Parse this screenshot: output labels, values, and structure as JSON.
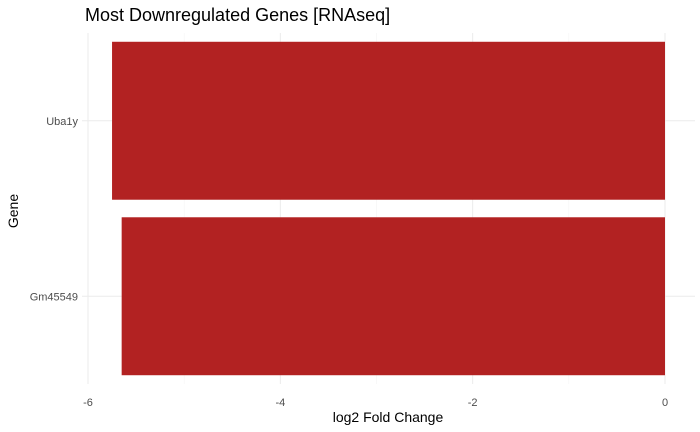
{
  "chart_data": {
    "type": "bar",
    "orientation": "horizontal",
    "title": "Most Downregulated Genes [RNAseq]",
    "xlabel": "log2 Fold Change",
    "ylabel": "Gene",
    "categories": [
      "Uba1y",
      "Gm45549"
    ],
    "values": [
      -5.75,
      -5.65
    ],
    "xlim": [
      -6.1,
      0.3
    ],
    "x_ticks": [
      -6,
      -4,
      -2,
      0
    ],
    "x_tick_labels": [
      "-6",
      "-4",
      "-2",
      "0"
    ],
    "grid": true,
    "legend": "none",
    "bar_color": "#b22222"
  }
}
